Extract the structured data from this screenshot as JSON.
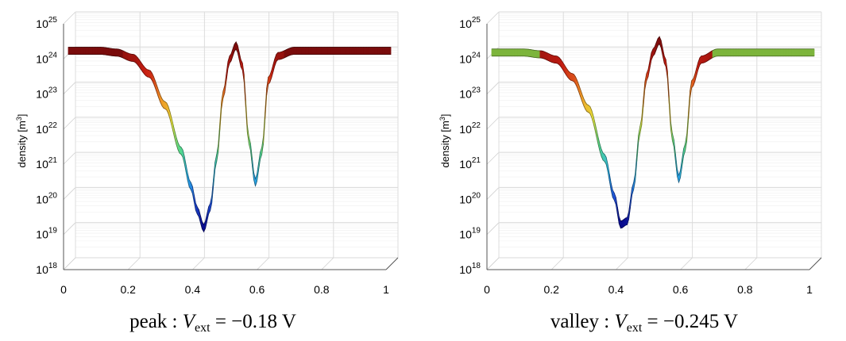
{
  "chart_data": [
    {
      "type": "line",
      "caption": {
        "prefix": "peak",
        "var": "V",
        "sub": "ext",
        "rest": "= −0.18 V"
      },
      "ylabel": "density [m",
      "ylabel_sup": "3",
      "ylabel_close": "]",
      "y_log": true,
      "ylim_exp": [
        18,
        25
      ],
      "xlim": [
        0,
        1
      ],
      "x_ticks": [
        "0",
        "0.2",
        "0.4",
        "0.6",
        "0.8",
        "1"
      ],
      "y_tick_exps": [
        "18",
        "19",
        "20",
        "21",
        "22",
        "23",
        "24",
        "25"
      ],
      "grid": true,
      "colormap": [
        "#0a0a8c",
        "#1f4fd6",
        "#2bb3e8",
        "#56d98a",
        "#e8e83a",
        "#f08a24",
        "#c81e12",
        "#7a0c0c"
      ],
      "plateau_color": "#7a0c0c",
      "series": [
        {
          "x": [
            0,
            0.05,
            0.1,
            0.15,
            0.2,
            0.25,
            0.3,
            0.35,
            0.38,
            0.4,
            0.42,
            0.44,
            0.46,
            0.48,
            0.5,
            0.52,
            0.54,
            0.56,
            0.58,
            0.6,
            0.62,
            0.65,
            0.7,
            0.8,
            0.9,
            1.0
          ],
          "y": [
            24.05,
            24.05,
            24.05,
            24.0,
            23.85,
            23.4,
            22.5,
            21.2,
            20.2,
            19.5,
            19.0,
            19.6,
            21.0,
            22.8,
            23.8,
            24.2,
            23.6,
            21.5,
            20.3,
            21.2,
            23.2,
            23.9,
            24.05,
            24.05,
            24.05,
            24.05
          ]
        }
      ]
    },
    {
      "type": "line",
      "caption": {
        "prefix": "valley",
        "var": "V",
        "sub": "ext",
        "rest": "= −0.245 V"
      },
      "ylabel": "density [m",
      "ylabel_sup": "3",
      "ylabel_close": "]",
      "y_log": true,
      "ylim_exp": [
        18,
        25
      ],
      "xlim": [
        0,
        1
      ],
      "x_ticks": [
        "0",
        "0.2",
        "0.4",
        "0.6",
        "0.8",
        "1"
      ],
      "y_tick_exps": [
        "18",
        "19",
        "20",
        "21",
        "22",
        "23",
        "24",
        "25"
      ],
      "grid": true,
      "colormap": [
        "#0a0a8c",
        "#1f4fd6",
        "#2bb3e8",
        "#56d98a",
        "#e8e83a",
        "#f08a24",
        "#c81e12",
        "#7a0c0c"
      ],
      "plateau_color": "#7db53c",
      "series": [
        {
          "x": [
            0,
            0.05,
            0.1,
            0.15,
            0.2,
            0.25,
            0.3,
            0.35,
            0.38,
            0.4,
            0.42,
            0.44,
            0.46,
            0.48,
            0.5,
            0.52,
            0.54,
            0.56,
            0.58,
            0.6,
            0.62,
            0.65,
            0.7,
            0.8,
            0.9,
            1.0
          ],
          "y": [
            24.0,
            24.0,
            24.0,
            23.95,
            23.8,
            23.3,
            22.4,
            21.0,
            19.9,
            19.1,
            19.2,
            20.2,
            21.8,
            23.3,
            24.0,
            24.35,
            23.7,
            21.6,
            20.4,
            21.3,
            23.1,
            23.8,
            24.0,
            24.0,
            24.0,
            24.0
          ]
        }
      ]
    }
  ]
}
